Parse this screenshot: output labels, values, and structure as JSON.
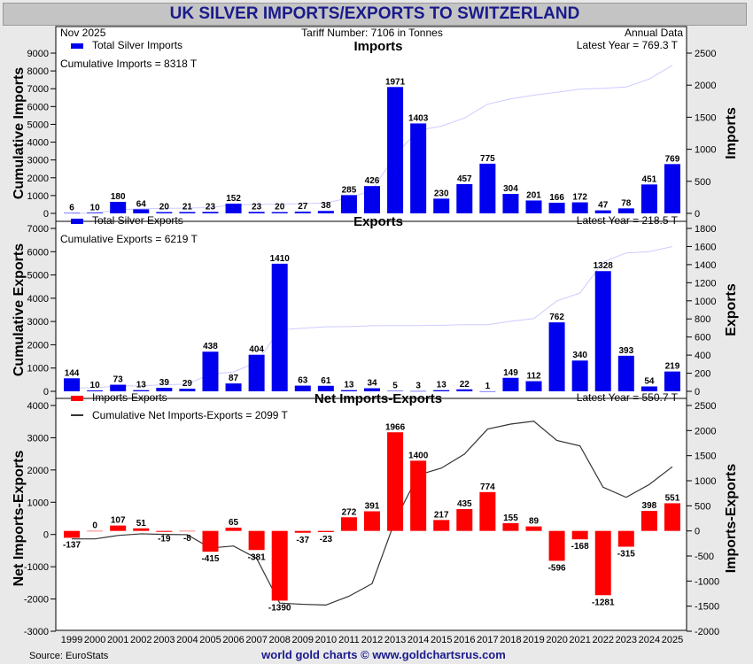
{
  "title": "UK SILVER IMPORTS/EXPORTS TO SWITZERLAND",
  "header": {
    "date": "Nov  2025",
    "tariff": "Tariff Number: 7106 in Tonnes",
    "period": "Annual Data"
  },
  "footer": {
    "source": "Source: EuroStats",
    "credit": "world gold charts © www.goldchartsrus.com"
  },
  "colors": {
    "imports": "#0000ee",
    "exports": "#0000ee",
    "net": "#ff0000",
    "cumulative_line": "#ccccff",
    "net_cumulative": "#333333"
  },
  "chart_data": [
    {
      "type": "bar",
      "title": "Imports",
      "legend": "Total Silver Imports",
      "cumulative_label": "Cumulative Imports = 8318 T",
      "latest_label": "Latest Year = 769.3 T",
      "ylabel_left": "Cumulative Imports",
      "ylabel_right": "Imports",
      "categories": [
        "1999",
        "2000",
        "2001",
        "2002",
        "2003",
        "2004",
        "2005",
        "2006",
        "2007",
        "2008",
        "2009",
        "2010",
        "2011",
        "2012",
        "2013",
        "2014",
        "2015",
        "2016",
        "2017",
        "2018",
        "2019",
        "2020",
        "2021",
        "2022",
        "2023",
        "2024",
        "2025"
      ],
      "values": [
        6,
        10,
        180,
        64,
        20,
        21,
        23,
        152,
        23,
        20,
        27,
        38,
        285,
        426,
        1971,
        1403,
        230,
        457,
        775,
        304,
        201,
        166,
        172,
        47,
        78,
        451,
        769
      ],
      "labels": [
        "6",
        "10",
        "180",
        "64",
        "20",
        "21",
        "23",
        "152",
        "23",
        "20",
        "27",
        "38",
        "285",
        "426",
        "1971",
        "1403",
        "230",
        "457",
        "775",
        "304",
        "201",
        "166",
        "172",
        "47",
        "78",
        "451",
        "769"
      ],
      "ylim_right": [
        0,
        2500
      ],
      "yticks_right": [
        0,
        500,
        1000,
        1500,
        2000,
        2500
      ],
      "ylim_left": [
        0,
        9000
      ],
      "yticks_left": [
        0,
        1000,
        2000,
        3000,
        4000,
        5000,
        6000,
        7000,
        8000,
        9000
      ]
    },
    {
      "type": "bar",
      "title": "Exports",
      "legend": "Total Silver Exports",
      "cumulative_label": "Cumulative Exports = 6219 T",
      "latest_label": "Latest Year = 218.5 T",
      "ylabel_left": "Cumulative Exports",
      "ylabel_right": "Exports",
      "categories": [
        "1999",
        "2000",
        "2001",
        "2002",
        "2003",
        "2004",
        "2005",
        "2006",
        "2007",
        "2008",
        "2009",
        "2010",
        "2011",
        "2012",
        "2013",
        "2014",
        "2015",
        "2016",
        "2017",
        "2018",
        "2019",
        "2020",
        "2021",
        "2022",
        "2023",
        "2024",
        "2025"
      ],
      "values": [
        144,
        10,
        73,
        13,
        39,
        29,
        438,
        87,
        404,
        1410,
        63,
        61,
        13,
        34,
        5,
        3,
        13,
        22,
        1,
        149,
        112,
        762,
        340,
        1328,
        393,
        54,
        219
      ],
      "labels": [
        "144",
        "10",
        "73",
        "13",
        "39",
        "29",
        "438",
        "87",
        "404",
        "1410",
        "63",
        "61",
        "13",
        "34",
        "5",
        "3",
        "13",
        "22",
        "1",
        "149",
        "112",
        "762",
        "340",
        "1328",
        "393",
        "54",
        "219"
      ],
      "ylim_right": [
        0,
        1800
      ],
      "yticks_right": [
        0,
        200,
        400,
        600,
        800,
        1000,
        1200,
        1400,
        1600,
        1800
      ],
      "ylim_left": [
        0,
        7000
      ],
      "yticks_left": [
        0,
        1000,
        2000,
        3000,
        4000,
        5000,
        6000,
        7000
      ]
    },
    {
      "type": "bar",
      "title": "Net Imports-Exports",
      "legend": "Imports-Exports",
      "legend2": "Cumulative Net Imports-Exports = 2099 T",
      "latest_label": "Latest Year = 550.7 T",
      "ylabel_left": "Net Imports-Exports",
      "ylabel_right": "Imports-Exports",
      "categories": [
        "1999",
        "2000",
        "2001",
        "2002",
        "2003",
        "2004",
        "2005",
        "2006",
        "2007",
        "2008",
        "2009",
        "2010",
        "2011",
        "2012",
        "2013",
        "2014",
        "2015",
        "2016",
        "2017",
        "2018",
        "2019",
        "2020",
        "2021",
        "2022",
        "2023",
        "2024",
        "2025"
      ],
      "values": [
        -137,
        0,
        107,
        51,
        -19,
        -8,
        -415,
        65,
        -381,
        -1390,
        -37,
        -23,
        272,
        391,
        1966,
        1400,
        217,
        435,
        774,
        155,
        89,
        -596,
        -168,
        -1281,
        -315,
        398,
        551
      ],
      "labels": [
        "-137",
        "0",
        "107",
        "51",
        "-19",
        "-8",
        "-415",
        "65",
        "-381",
        "-1390",
        "-37",
        "-23",
        "272",
        "391",
        "1966",
        "1400",
        "217",
        "435",
        "774",
        "155",
        "89",
        "-596",
        "-168",
        "-1281",
        "-315",
        "398",
        "551"
      ],
      "ylim_right": [
        -2000,
        2500
      ],
      "yticks_right": [
        -2000,
        -1500,
        -1000,
        -500,
        0,
        500,
        1000,
        1500,
        2000,
        2500
      ],
      "ylim_left": [
        -3000,
        4000
      ],
      "yticks_left": [
        -3000,
        -2000,
        -1000,
        0,
        1000,
        2000,
        3000,
        4000
      ]
    }
  ]
}
